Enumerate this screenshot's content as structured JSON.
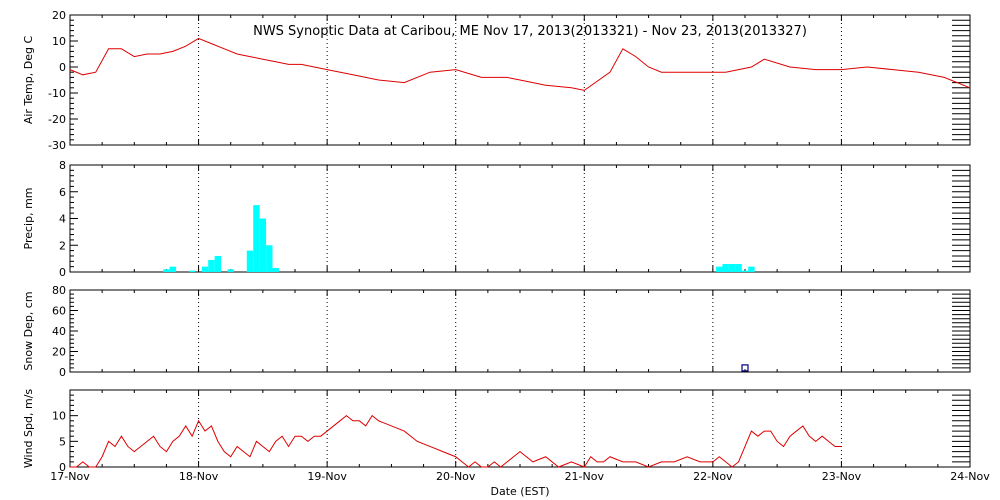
{
  "title": "NWS Synoptic Data at Caribou, ME   Nov 17, 2013(2013321) - Nov 23, 2013(2013327)",
  "xlabel": "Date (EST)",
  "date_ticks": [
    "17-Nov",
    "18-Nov",
    "19-Nov",
    "20-Nov",
    "21-Nov",
    "22-Nov",
    "23-Nov",
    "24-Nov"
  ],
  "colors": {
    "temp": "#dd0000",
    "precip": "#00ffff",
    "snow": "#000080",
    "wind": "#dd0000",
    "axis": "#000000"
  },
  "chart_data": [
    {
      "type": "line",
      "ylabel": "Air Temp, Deg C",
      "ylim": [
        -30,
        20
      ],
      "yticks": [
        -30,
        -20,
        -10,
        0,
        10,
        20
      ],
      "grid": "vertical dotted at day boundaries",
      "x_unit": "days since 17-Nov 00:00",
      "x": [
        0,
        0.1,
        0.2,
        0.3,
        0.4,
        0.5,
        0.6,
        0.7,
        0.8,
        0.9,
        1.0,
        1.1,
        1.2,
        1.3,
        1.4,
        1.5,
        1.6,
        1.7,
        1.8,
        1.9,
        2.0,
        2.2,
        2.4,
        2.6,
        2.8,
        3.0,
        3.2,
        3.3,
        3.4,
        3.5,
        3.7,
        3.9,
        4.0,
        4.2,
        4.3,
        4.4,
        4.5,
        4.6,
        4.7,
        4.9,
        5.1,
        5.3,
        5.4,
        5.6,
        5.8,
        6.0,
        6.2,
        6.4,
        6.6,
        6.8,
        7.0
      ],
      "y": [
        -1,
        -3,
        -2,
        7,
        7,
        4,
        5,
        5,
        6,
        8,
        11,
        9,
        7,
        5,
        4,
        3,
        2,
        1,
        1,
        0,
        -1,
        -3,
        -5,
        -6,
        -2,
        -1,
        -4,
        -4,
        -4,
        -5,
        -7,
        -8,
        -9,
        -2,
        7,
        4,
        0,
        -2,
        -2,
        -2,
        -2,
        0,
        3,
        0,
        -1,
        -1,
        0,
        -1,
        -2,
        -4,
        -8
      ]
    },
    {
      "type": "bar",
      "ylabel": "Precip, mm",
      "ylim": [
        0,
        8
      ],
      "yticks": [
        0,
        2,
        4,
        6,
        8
      ],
      "x_unit": "days since 17-Nov 00:00",
      "x": [
        0.75,
        0.8,
        0.95,
        1.05,
        1.1,
        1.15,
        1.25,
        1.4,
        1.45,
        1.5,
        1.55,
        1.6,
        5.05,
        5.1,
        5.15,
        5.2,
        5.25,
        5.3
      ],
      "values": [
        0.2,
        0.4,
        0.1,
        0.4,
        0.9,
        1.2,
        0.2,
        1.6,
        5.0,
        4.0,
        2.0,
        0.3,
        0.4,
        0.6,
        0.6,
        0.6,
        0.1,
        0.4
      ]
    },
    {
      "type": "scatter",
      "ylabel": "Snow Dep, cm",
      "ylim": [
        0,
        80
      ],
      "yticks": [
        0,
        20,
        40,
        60,
        80
      ],
      "x_unit": "days since 17-Nov 00:00",
      "x": [
        5.25
      ],
      "y": [
        4
      ]
    },
    {
      "type": "line",
      "ylabel": "Wind Spd, m/s",
      "ylim": [
        0,
        15
      ],
      "yticks": [
        0,
        5,
        10
      ],
      "x_unit": "days since 17-Nov 00:00",
      "x": [
        0,
        0.05,
        0.1,
        0.15,
        0.2,
        0.25,
        0.3,
        0.35,
        0.4,
        0.45,
        0.5,
        0.55,
        0.6,
        0.65,
        0.7,
        0.75,
        0.8,
        0.85,
        0.9,
        0.95,
        1.0,
        1.05,
        1.1,
        1.15,
        1.2,
        1.25,
        1.3,
        1.35,
        1.4,
        1.45,
        1.5,
        1.55,
        1.6,
        1.65,
        1.7,
        1.75,
        1.8,
        1.85,
        1.9,
        1.95,
        2.0,
        2.05,
        2.1,
        2.15,
        2.2,
        2.25,
        2.3,
        2.35,
        2.4,
        2.5,
        2.6,
        2.7,
        2.8,
        2.9,
        3.0,
        3.05,
        3.1,
        3.15,
        3.2,
        3.25,
        3.3,
        3.35,
        3.4,
        3.45,
        3.5,
        3.55,
        3.6,
        3.7,
        3.8,
        3.9,
        4.0,
        4.05,
        4.1,
        4.15,
        4.2,
        4.3,
        4.4,
        4.5,
        4.6,
        4.7,
        4.8,
        4.9,
        5.0,
        5.05,
        5.1,
        5.15,
        5.2,
        5.25,
        5.3,
        5.35,
        5.4,
        5.45,
        5.5,
        5.55,
        5.6,
        5.65,
        5.7,
        5.75,
        5.8,
        5.85,
        5.9,
        5.95,
        6.0
      ],
      "y": [
        0,
        0,
        1,
        0,
        0,
        2,
        5,
        4,
        6,
        4,
        3,
        4,
        5,
        6,
        4,
        3,
        5,
        6,
        8,
        6,
        9,
        7,
        8,
        5,
        3,
        2,
        4,
        3,
        2,
        5,
        4,
        3,
        5,
        6,
        4,
        6,
        6,
        5,
        6,
        6,
        7,
        8,
        9,
        10,
        9,
        9,
        8,
        10,
        9,
        8,
        7,
        5,
        4,
        3,
        2,
        1,
        0,
        1,
        0,
        0,
        1,
        0,
        1,
        2,
        3,
        2,
        1,
        2,
        0,
        1,
        0,
        2,
        1,
        1,
        2,
        1,
        1,
        0,
        1,
        1,
        2,
        1,
        1,
        2,
        1,
        0,
        1,
        4,
        7,
        6,
        7,
        7,
        5,
        4,
        6,
        7,
        8,
        6,
        5,
        6,
        5,
        4,
        4
      ]
    }
  ]
}
